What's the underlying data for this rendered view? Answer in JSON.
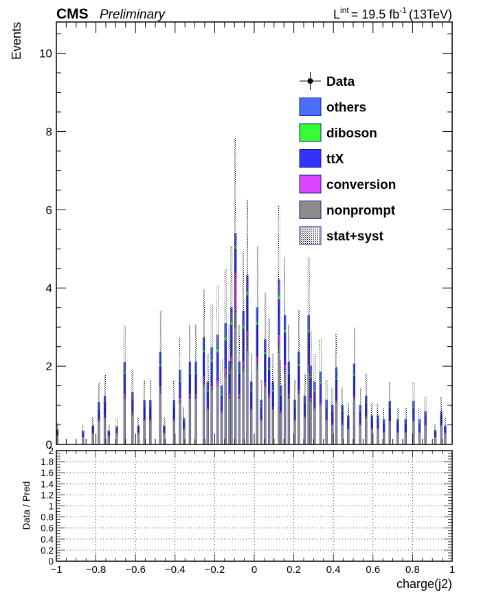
{
  "header": {
    "experiment": "CMS",
    "status": "Preliminary",
    "lumi_prefix": "L",
    "lumi_sup": "int",
    "lumi_value": "= 19.5 fb",
    "lumi_exp": "-1",
    "lumi_energy": "(13TeV)"
  },
  "legend": {
    "entries": [
      {
        "label": "Data",
        "kind": "marker",
        "color": "#000000"
      },
      {
        "label": "others",
        "kind": "box",
        "color": "#4a6cff"
      },
      {
        "label": "diboson",
        "kind": "box",
        "color": "#33ff33"
      },
      {
        "label": "ttX",
        "kind": "box",
        "color": "#3333ff"
      },
      {
        "label": "conversion",
        "kind": "box",
        "color": "#dd44ff"
      },
      {
        "label": "nonprompt",
        "kind": "box",
        "color": "#8c8c8c"
      },
      {
        "label": "stat+syst",
        "kind": "hatch",
        "color": "#000000"
      }
    ]
  },
  "chart_data": [
    {
      "type": "bar",
      "subtype": "stacked-histogram",
      "ylabel": "Events",
      "xlim": [
        -1,
        1
      ],
      "ylim": [
        0,
        10.8
      ],
      "y_ticks": [
        0,
        2,
        4,
        6,
        8,
        10
      ],
      "bin_width": 0.01,
      "stack_order": [
        "nonprompt",
        "conversion",
        "ttX",
        "diboson",
        "others"
      ],
      "colors": {
        "nonprompt": "#8c8c8c",
        "conversion": "#dd44ff",
        "ttX": "#3333ff",
        "diboson": "#33ff33",
        "others": "#4a6cff"
      },
      "x": [
        -0.995,
        -0.865,
        -0.815,
        -0.785,
        -0.755,
        -0.735,
        -0.695,
        -0.655,
        -0.615,
        -0.585,
        -0.555,
        -0.525,
        -0.475,
        -0.455,
        -0.405,
        -0.375,
        -0.355,
        -0.325,
        -0.295,
        -0.255,
        -0.235,
        -0.215,
        -0.185,
        -0.165,
        -0.145,
        -0.125,
        -0.115,
        -0.095,
        -0.075,
        -0.055,
        -0.035,
        -0.015,
        0.015,
        0.035,
        0.055,
        0.075,
        0.095,
        0.125,
        0.135,
        0.155,
        0.175,
        0.205,
        0.225,
        0.255,
        0.275,
        0.285,
        0.305,
        0.335,
        0.365,
        0.395,
        0.415,
        0.445,
        0.475,
        0.505,
        0.535,
        0.565,
        0.595,
        0.625,
        0.655,
        0.685,
        0.725,
        0.765,
        0.805,
        0.835,
        0.865,
        0.915,
        0.945,
        0.965
      ],
      "series": [
        {
          "name": "nonprompt",
          "values": [
            0.25,
            0.2,
            0.3,
            0.6,
            0.7,
            0.25,
            0.3,
            1.2,
            0.8,
            0.3,
            0.6,
            0.6,
            1.4,
            0.3,
            0.6,
            1.1,
            0.4,
            1.2,
            1.2,
            1.6,
            0.9,
            1.4,
            1.5,
            0.8,
            1.8,
            1.2,
            2.1,
            3.4,
            1.2,
            2.0,
            2.7,
            0.9,
            2.1,
            0.6,
            1.5,
            1.2,
            0.9,
            2.6,
            0.8,
            1.9,
            1.2,
            0.6,
            1.3,
            0.7,
            1.9,
            1.1,
            0.9,
            1.0,
            0.6,
            0.5,
            1.1,
            0.5,
            0.4,
            1.2,
            0.5,
            0.7,
            0.4,
            0.4,
            0.3,
            0.6,
            0.3,
            0.3,
            0.6,
            0.3,
            0.5,
            0.2,
            0.5,
            0.3
          ]
        },
        {
          "name": "conversion",
          "values": [
            0.02,
            0.0,
            0.02,
            0.05,
            0.05,
            0.0,
            0.0,
            0.1,
            0.05,
            0.02,
            0.05,
            0.05,
            0.1,
            0.02,
            0.05,
            0.1,
            0.02,
            0.1,
            0.1,
            0.15,
            0.05,
            0.1,
            0.15,
            0.05,
            0.15,
            0.1,
            0.15,
            1.0,
            0.1,
            0.15,
            0.2,
            0.05,
            0.15,
            0.05,
            0.1,
            0.1,
            0.05,
            0.2,
            0.05,
            0.15,
            0.1,
            0.05,
            0.1,
            0.05,
            0.15,
            0.1,
            0.05,
            0.05,
            0.05,
            0.02,
            0.05,
            0.02,
            0.02,
            0.05,
            0.02,
            0.05,
            0.02,
            0.02,
            0.02,
            0.02,
            0.02,
            0.02,
            0.02,
            0.02,
            0.02,
            0.0,
            0.02,
            0.02
          ]
        },
        {
          "name": "ttX",
          "values": [
            0.05,
            0.1,
            0.1,
            0.25,
            0.3,
            0.05,
            0.1,
            0.5,
            0.3,
            0.1,
            0.3,
            0.3,
            0.5,
            0.1,
            0.3,
            0.4,
            0.15,
            0.5,
            0.5,
            0.6,
            0.4,
            0.6,
            0.7,
            0.4,
            0.7,
            0.5,
            0.8,
            0.6,
            0.5,
            0.8,
            0.9,
            0.4,
            0.8,
            0.3,
            0.7,
            0.6,
            0.4,
            0.9,
            0.4,
            0.8,
            0.5,
            0.3,
            0.6,
            0.3,
            0.8,
            0.5,
            0.4,
            0.5,
            0.3,
            0.3,
            0.5,
            0.3,
            0.2,
            0.5,
            0.3,
            0.3,
            0.2,
            0.2,
            0.2,
            0.3,
            0.2,
            0.2,
            0.3,
            0.2,
            0.2,
            0.1,
            0.2,
            0.1
          ]
        },
        {
          "name": "diboson",
          "values": [
            0.01,
            0.0,
            0.01,
            0.03,
            0.03,
            0.0,
            0.01,
            0.05,
            0.03,
            0.01,
            0.03,
            0.03,
            0.06,
            0.01,
            0.03,
            0.05,
            0.02,
            0.06,
            0.06,
            0.08,
            0.05,
            0.08,
            0.1,
            0.05,
            0.1,
            0.07,
            0.1,
            0.1,
            0.06,
            0.1,
            0.12,
            0.05,
            0.1,
            0.04,
            0.08,
            0.07,
            0.05,
            0.12,
            0.05,
            0.1,
            0.06,
            0.04,
            0.07,
            0.04,
            0.1,
            0.06,
            0.05,
            0.06,
            0.04,
            0.03,
            0.06,
            0.03,
            0.02,
            0.06,
            0.03,
            0.04,
            0.02,
            0.02,
            0.02,
            0.03,
            0.02,
            0.02,
            0.03,
            0.02,
            0.02,
            0.01,
            0.02,
            0.01
          ]
        },
        {
          "name": "others",
          "values": [
            0.05,
            0.05,
            0.05,
            0.15,
            0.15,
            0.05,
            0.05,
            0.25,
            0.15,
            0.05,
            0.15,
            0.15,
            0.3,
            0.05,
            0.15,
            0.25,
            0.08,
            0.25,
            0.25,
            0.3,
            0.2,
            0.3,
            0.35,
            0.2,
            0.35,
            0.25,
            0.35,
            0.3,
            0.25,
            0.35,
            0.4,
            0.2,
            0.35,
            0.15,
            0.3,
            0.25,
            0.2,
            0.4,
            0.2,
            0.35,
            0.25,
            0.15,
            0.3,
            0.15,
            0.35,
            0.25,
            0.2,
            0.25,
            0.15,
            0.15,
            0.25,
            0.15,
            0.1,
            0.25,
            0.15,
            0.15,
            0.1,
            0.1,
            0.1,
            0.15,
            0.1,
            0.1,
            0.15,
            0.1,
            0.1,
            0.05,
            0.1,
            0.05
          ]
        }
      ],
      "uncertainty_fraction": 0.45
    },
    {
      "type": "scatter",
      "subtype": "ratio-panel",
      "xlabel": "charge(j2)",
      "ylabel": "Data / Pred",
      "xlim": [
        -1,
        1
      ],
      "ylim": [
        0,
        2
      ],
      "x_ticks": [
        -1,
        -0.8,
        -0.6,
        -0.4,
        -0.2,
        0,
        0.2,
        0.4,
        0.6,
        0.8,
        1
      ],
      "x_tick_labels": [
        "−1",
        "−0.8",
        "−0.6",
        "−0.4",
        "−0.2",
        "0",
        "0.2",
        "0.4",
        "0.6",
        "0.8",
        "1"
      ],
      "y_ticks": [
        0,
        0.2,
        0.4,
        0.6,
        0.8,
        1,
        1.2,
        1.4,
        1.6,
        1.8,
        2
      ],
      "y_tick_labels": [
        "0",
        "0.2",
        "0.4",
        "0.6",
        "0.8",
        "1",
        "1.2",
        "1.4",
        "1.6",
        "1.8",
        "2"
      ],
      "grid": true
    }
  ]
}
